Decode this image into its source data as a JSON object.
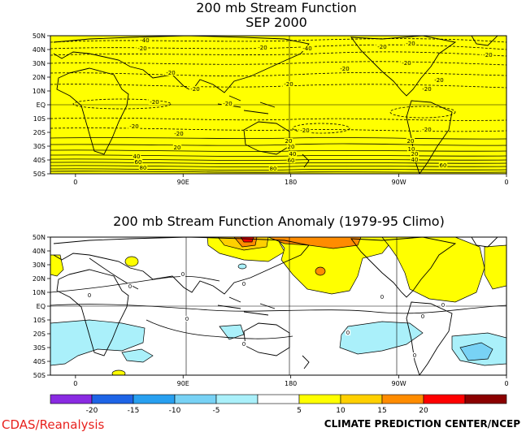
{
  "chart_data": [
    {
      "type": "heatmap",
      "title": "200 mb Stream Function",
      "subtitle": "SEP 2000",
      "y_ticks": [
        "50N",
        "40N",
        "30N",
        "20N",
        "10N",
        "EQ",
        "10S",
        "20S",
        "30S",
        "40S",
        "50S"
      ],
      "x_ticks": [
        "0",
        "90E",
        "180",
        "90W",
        "0"
      ],
      "fill_color": "#ffff00",
      "contour_labels": [
        "-40",
        "-20",
        "-20",
        "-40",
        "-20",
        "-20",
        "-20",
        "-20",
        "-20",
        "-20",
        "-20",
        "-20",
        "-20",
        "-20",
        "-20",
        "-20",
        "-20",
        "-20",
        "-20",
        "-20",
        "20",
        "20",
        "20",
        "40",
        "60",
        "80",
        "20",
        "40",
        "60",
        "10",
        "20",
        "40",
        "60",
        "80"
      ]
    },
    {
      "type": "heatmap",
      "title": "200 mb Stream Function Anomaly (1979-95 Climo)",
      "y_ticks": [
        "50N",
        "40N",
        "30N",
        "20N",
        "10N",
        "EQ",
        "10S",
        "20S",
        "30S",
        "40S",
        "50S"
      ],
      "x_ticks": [
        "0",
        "90E",
        "180",
        "90W",
        "0"
      ],
      "contour_labels": [
        "0",
        "0",
        "0",
        "0",
        "0",
        "0",
        "0",
        "0",
        "0",
        "0",
        "0"
      ],
      "colorbar": {
        "labels": [
          "-20",
          "-15",
          "-10",
          "-5",
          "5",
          "10",
          "15",
          "20"
        ],
        "colors": [
          "#8a2be2",
          "#1e64e6",
          "#28a0f0",
          "#78d2f5",
          "#aaf0fa",
          "#ffffff",
          "#ffff00",
          "#ffd000",
          "#ff8c00",
          "#ff0000",
          "#8b0000"
        ]
      }
    }
  ],
  "credits": {
    "left": "CDAS/Reanalysis",
    "right": "CLIMATE PREDICTION CENTER/NCEP"
  }
}
